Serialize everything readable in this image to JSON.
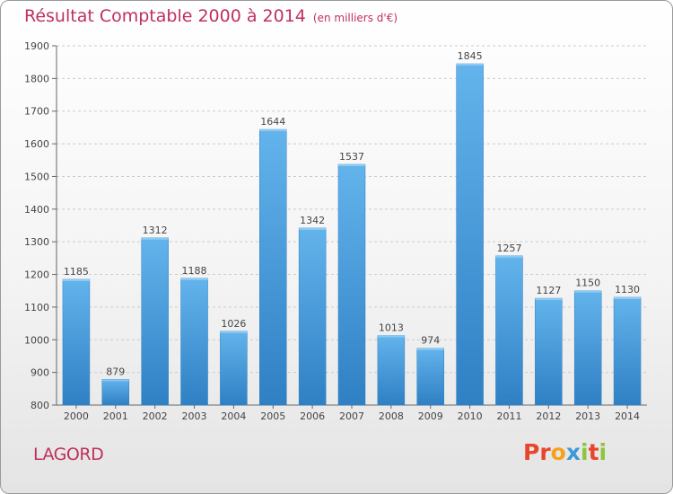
{
  "title": "Résultat Comptable 2000 à 2014",
  "subtitle": "(en milliers d'€)",
  "commune": "LAGORD",
  "logo": {
    "letters": [
      "P",
      "r",
      "o",
      "x",
      "i",
      "t",
      "i"
    ],
    "colors": [
      "#e8452c",
      "#e8452c",
      "#f5a21b",
      "#3c9ad6",
      "#8cc63f",
      "#e8452c",
      "#8cc63f"
    ]
  },
  "colors": {
    "bar": "#4a9fde",
    "bar_dark": "#2f80c4",
    "bar_light": "#63b3ec",
    "title": "#c0305b",
    "grid": "#cccccc"
  },
  "chart_data": {
    "type": "bar",
    "categories": [
      "2000",
      "2001",
      "2002",
      "2003",
      "2004",
      "2005",
      "2006",
      "2007",
      "2008",
      "2009",
      "2010",
      "2011",
      "2012",
      "2013",
      "2014"
    ],
    "values": [
      1185,
      879,
      1312,
      1188,
      1026,
      1644,
      1342,
      1537,
      1013,
      974,
      1845,
      1257,
      1127,
      1150,
      1130
    ],
    "ylim": [
      800,
      1900
    ],
    "yticks": [
      800,
      900,
      1000,
      1100,
      1200,
      1300,
      1400,
      1500,
      1600,
      1700,
      1800,
      1900
    ],
    "data_labels": true,
    "grid": "horizontal dashed"
  }
}
